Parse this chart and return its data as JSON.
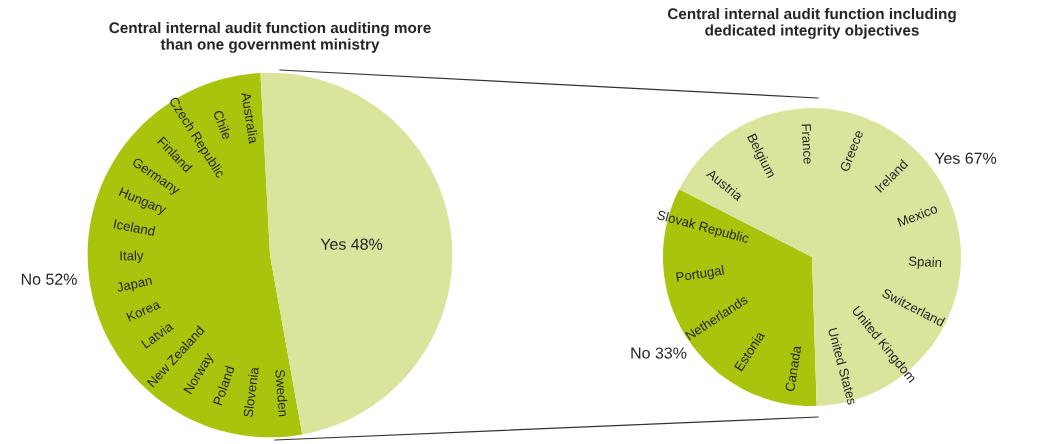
{
  "chart_data": [
    {
      "type": "pie",
      "title": "Central internal audit function auditing more\nthan one government ministry",
      "categories": [
        "No",
        "Yes"
      ],
      "values": [
        52,
        48
      ],
      "value_labels": [
        "52%",
        "48%"
      ],
      "colors": [
        "#aac40e",
        "#dbe49d"
      ],
      "annotations": [
        "Australia",
        "Chile",
        "Czech Republic",
        "Finland",
        "Germany",
        "Hungary",
        "Iceland",
        "Italy",
        "Japan",
        "Korea",
        "Latvia",
        "New Zealand",
        "Norway",
        "Poland",
        "Slovenia",
        "Sweden"
      ]
    },
    {
      "type": "pie",
      "title": "Central internal audit function including\ndedicated integrity objectives",
      "categories": [
        "No",
        "Yes"
      ],
      "values": [
        33,
        67
      ],
      "value_labels": [
        "33%",
        "67%"
      ],
      "colors": [
        "#aac40e",
        "#dbe49d"
      ],
      "annotations": [
        "Austria",
        "Belgium",
        "France",
        "Greece",
        "Ireland",
        "Mexico",
        "Spain",
        "Switzerland",
        "United Kingdom",
        "United States",
        "Canada",
        "Estonia",
        "Netherlands",
        "Portugal",
        "Slovak Republic"
      ]
    }
  ]
}
